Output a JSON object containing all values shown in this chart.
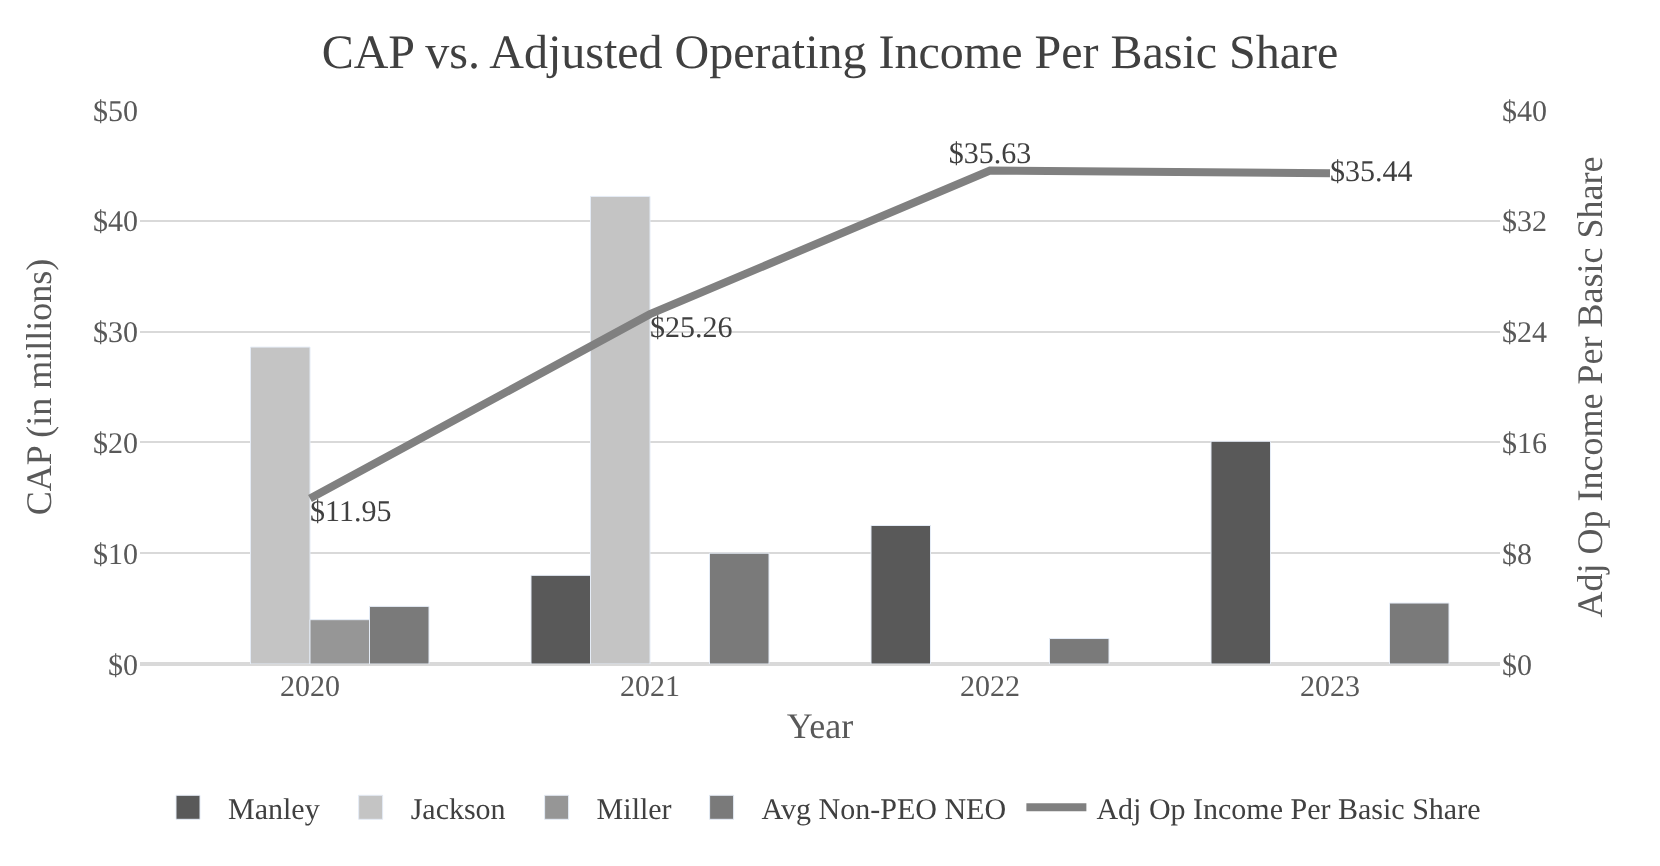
{
  "chart_data": {
    "type": "bar",
    "title": "CAP vs. Adjusted Operating Income Per Basic Share",
    "xlabel": "Year",
    "ylabel": "CAP (in millions)",
    "y2label": "Adj Op Income Per Basic Share",
    "categories": [
      "2020",
      "2021",
      "2022",
      "2023"
    ],
    "series": [
      {
        "name": "Manley",
        "color": "#595959",
        "values": [
          null,
          8.0,
          12.5,
          20.1
        ]
      },
      {
        "name": "Jackson",
        "color": "#c4c4c4",
        "values": [
          28.6,
          42.2,
          null,
          null
        ]
      },
      {
        "name": "Miller",
        "color": "#969696",
        "values": [
          4.0,
          null,
          null,
          null
        ]
      },
      {
        "name": "Avg Non-PEO NEO",
        "color": "#7a7a7a",
        "values": [
          5.2,
          10.0,
          2.3,
          5.5
        ]
      },
      {
        "name": "Adj Op Income Per Basic Share",
        "type": "line",
        "axis": "y2",
        "color": "#808080",
        "values": [
          11.95,
          25.26,
          35.63,
          35.44
        ],
        "value_labels": [
          "$11.95",
          "$25.26",
          "$35.63",
          "$35.44"
        ]
      }
    ],
    "ylim": [
      0,
      50
    ],
    "yticks": [
      {
        "value": 0,
        "label": "$0"
      },
      {
        "value": 10,
        "label": "$10"
      },
      {
        "value": 20,
        "label": "$20"
      },
      {
        "value": 30,
        "label": "$30"
      },
      {
        "value": 40,
        "label": "$40"
      },
      {
        "value": 50,
        "label": "$50"
      }
    ],
    "y2lim": [
      0,
      40
    ],
    "y2ticks": [
      {
        "value": 0,
        "label": "$0"
      },
      {
        "value": 8,
        "label": "$8"
      },
      {
        "value": 16,
        "label": "$16"
      },
      {
        "value": 24,
        "label": "$24"
      },
      {
        "value": 32,
        "label": "$32"
      },
      {
        "value": 40,
        "label": "$40"
      }
    ],
    "grid": "y",
    "legend": "bottom",
    "marker": "none",
    "line_style": "solid"
  }
}
